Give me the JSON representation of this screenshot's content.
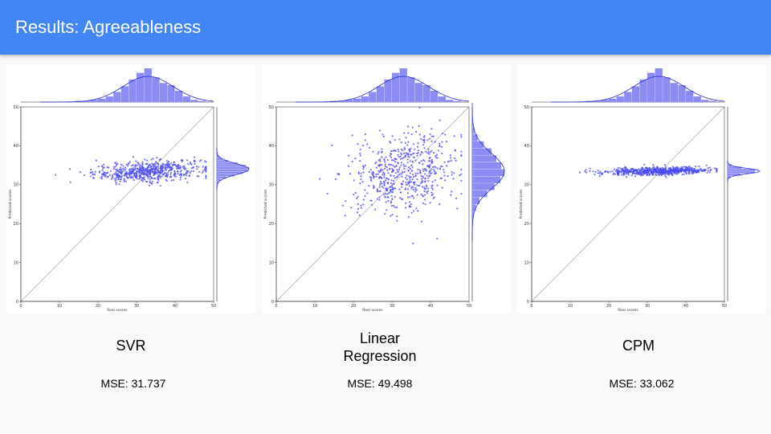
{
  "slide": {
    "title": "Results: Agreeableness",
    "models": [
      {
        "name_line1": "SVR",
        "name_line2": "",
        "mse": "MSE: 31.737"
      },
      {
        "name_line1": "Linear",
        "name_line2": "Regression",
        "mse": "MSE: 49.498"
      },
      {
        "name_line1": "CPM",
        "name_line2": "",
        "mse": "MSE: 33.062"
      }
    ]
  },
  "colors": {
    "header": "#4285f4",
    "points": "#4a4af0",
    "hist": "#8c8cf2",
    "kde": "#2a2ad8",
    "identity": "#9e9e9e"
  },
  "chart_data": [
    {
      "type": "scatter",
      "title": "",
      "xlabel": "Real scores",
      "ylabel": "Predicted scores",
      "xlim": [
        0,
        50
      ],
      "ylim": [
        0,
        50
      ],
      "xticks": [
        0,
        10,
        20,
        30,
        40,
        50
      ],
      "yticks": [
        0,
        10,
        20,
        30,
        40,
        50
      ],
      "identity_line": true,
      "marginal_x": {
        "bins": [
          5,
          7,
          9,
          11,
          13,
          15,
          17,
          19,
          21,
          23,
          25,
          27,
          29,
          31,
          33,
          35,
          37,
          39,
          41,
          43,
          45,
          47,
          49
        ],
        "counts": [
          0,
          0,
          0,
          0,
          0,
          1,
          1,
          2,
          3,
          5,
          9,
          14,
          20,
          26,
          30,
          22,
          17,
          15,
          10,
          5,
          2,
          1,
          0
        ]
      },
      "marginal_y_center": 34.0,
      "marginal_y_spread": 1.4,
      "x_mean": 33,
      "x_sd": 7,
      "y_mean": 33.5,
      "y_sd": 1.3,
      "y_slope": 0.06,
      "n_points": 600
    },
    {
      "type": "scatter",
      "title": "",
      "xlabel": "Real scores",
      "ylabel": "Predicted scores",
      "xlim": [
        0,
        50
      ],
      "ylim": [
        0,
        50
      ],
      "xticks": [
        0,
        10,
        20,
        30,
        40,
        50
      ],
      "yticks": [
        0,
        10,
        20,
        30,
        40,
        50
      ],
      "identity_line": true,
      "marginal_x": {
        "bins": [
          5,
          7,
          9,
          11,
          13,
          15,
          17,
          19,
          21,
          23,
          25,
          27,
          29,
          31,
          33,
          35,
          37,
          39,
          41,
          43,
          45,
          47,
          49
        ],
        "counts": [
          0,
          0,
          0,
          0,
          0,
          1,
          1,
          2,
          3,
          5,
          9,
          14,
          20,
          26,
          30,
          22,
          17,
          15,
          10,
          5,
          2,
          1,
          0
        ]
      },
      "marginal_y_center": 33.5,
      "marginal_y_spread": 4.5,
      "x_mean": 33,
      "x_sd": 7,
      "y_mean": 33,
      "y_sd": 5,
      "y_slope": 0.1,
      "n_points": 600
    },
    {
      "type": "scatter",
      "title": "",
      "xlabel": "Real scores",
      "ylabel": "Predicted scores",
      "xlim": [
        0,
        50
      ],
      "ylim": [
        0,
        50
      ],
      "xticks": [
        0,
        10,
        20,
        30,
        40,
        50
      ],
      "yticks": [
        0,
        10,
        20,
        30,
        40,
        50
      ],
      "identity_line": true,
      "marginal_x": {
        "bins": [
          5,
          7,
          9,
          11,
          13,
          15,
          17,
          19,
          21,
          23,
          25,
          27,
          29,
          31,
          33,
          35,
          37,
          39,
          41,
          43,
          45,
          47,
          49
        ],
        "counts": [
          0,
          0,
          0,
          0,
          0,
          1,
          1,
          2,
          3,
          5,
          9,
          14,
          20,
          26,
          30,
          22,
          17,
          15,
          10,
          5,
          2,
          1,
          0
        ]
      },
      "marginal_y_center": 33.5,
      "marginal_y_spread": 0.7,
      "x_mean": 33,
      "x_sd": 7,
      "y_mean": 33.5,
      "y_sd": 0.5,
      "y_slope": 0.02,
      "n_points": 600
    }
  ]
}
